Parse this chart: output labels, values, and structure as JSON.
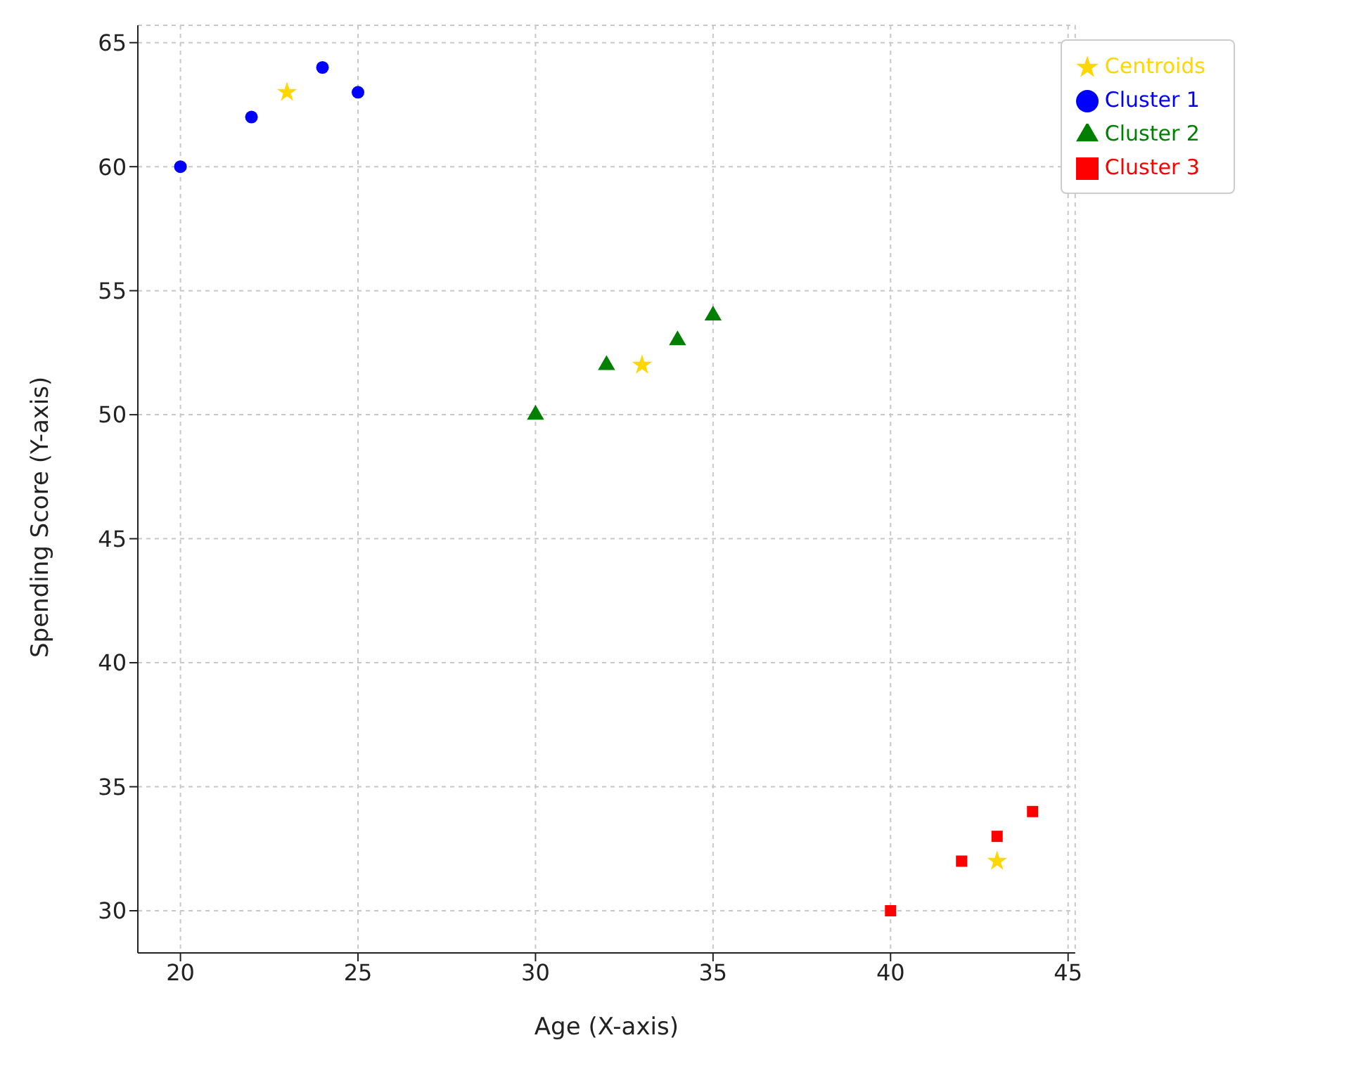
{
  "chart_data": {
    "type": "scatter",
    "xlabel": "Age (X-axis)",
    "ylabel": "Spending Score (Y-axis)",
    "xlim": [
      18.8,
      45.2
    ],
    "xticks": [
      20,
      25,
      30,
      35,
      40,
      45
    ],
    "ylim": [
      28.3,
      65.7
    ],
    "yticks": [
      30,
      35,
      40,
      45,
      50,
      55,
      60,
      65
    ],
    "grid": true,
    "legend": "top right",
    "series": [
      {
        "name": "Cluster 1",
        "color": "#0000ff",
        "marker": "circle",
        "x": [
          20,
          22,
          24,
          25
        ],
        "values": [
          60,
          62,
          64,
          63
        ]
      },
      {
        "name": "Cluster 2",
        "color": "#007f00",
        "marker": "triangle",
        "x": [
          30,
          32,
          34,
          35
        ],
        "values": [
          50,
          52,
          53,
          54
        ]
      },
      {
        "name": "Cluster 3",
        "color": "#ff0000",
        "marker": "square",
        "x": [
          40,
          42,
          43,
          44
        ],
        "values": [
          30,
          32,
          33,
          34
        ]
      },
      {
        "name": "Centroids",
        "color": "#ffd700",
        "marker": "star",
        "x": [
          23,
          33,
          43
        ],
        "values": [
          63,
          52,
          32
        ]
      }
    ]
  }
}
